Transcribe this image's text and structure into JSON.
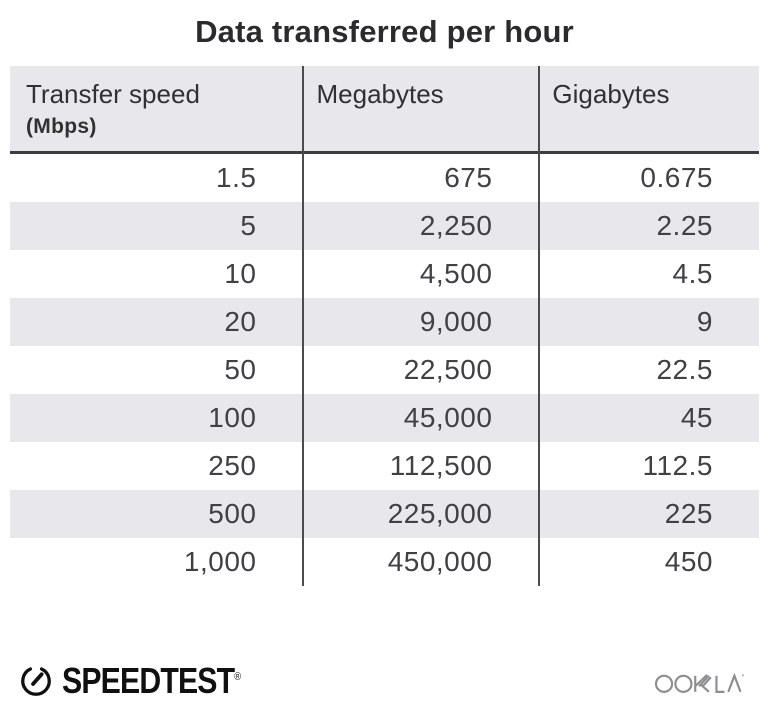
{
  "title": "Data transferred per hour",
  "table": {
    "columns": [
      {
        "label": "Transfer speed",
        "sublabel": "(Mbps)"
      },
      {
        "label": "Megabytes",
        "sublabel": ""
      },
      {
        "label": "Gigabytes",
        "sublabel": ""
      }
    ],
    "rows": [
      [
        "1.5",
        "675",
        "0.675"
      ],
      [
        "5",
        "2,250",
        "2.25"
      ],
      [
        "10",
        "4,500",
        "4.5"
      ],
      [
        "20",
        "9,000",
        "9"
      ],
      [
        "50",
        "22,500",
        "22.5"
      ],
      [
        "100",
        "45,000",
        "45"
      ],
      [
        "250",
        "112,500",
        "112.5"
      ],
      [
        "500",
        "225,000",
        "225"
      ],
      [
        "1,000",
        "450,000",
        "450"
      ]
    ]
  },
  "chart_data": {
    "type": "table",
    "title": "Data transferred per hour",
    "columns": [
      "Transfer speed (Mbps)",
      "Megabytes",
      "Gigabytes"
    ],
    "rows": [
      [
        1.5,
        675,
        0.675
      ],
      [
        5,
        2250,
        2.25
      ],
      [
        10,
        4500,
        4.5
      ],
      [
        20,
        9000,
        9
      ],
      [
        50,
        22500,
        22.5
      ],
      [
        100,
        45000,
        45
      ],
      [
        250,
        112500,
        112.5
      ],
      [
        500,
        225000,
        225
      ],
      [
        1000,
        450000,
        450
      ]
    ]
  },
  "footer": {
    "speedtest_label": "SPEEDTEST",
    "speedtest_registered_mark": "®",
    "ookla_label": "OOKLA"
  },
  "colors": {
    "stripe_bg": "#e8e7eb",
    "divider": "#4b4b4e",
    "header_rule": "#3d3d40",
    "title_text": "#2b2b2d",
    "header_text": "#313134",
    "body_text": "#414144",
    "speedtest_black": "#101011",
    "ookla_gray": "#8e8e90"
  }
}
